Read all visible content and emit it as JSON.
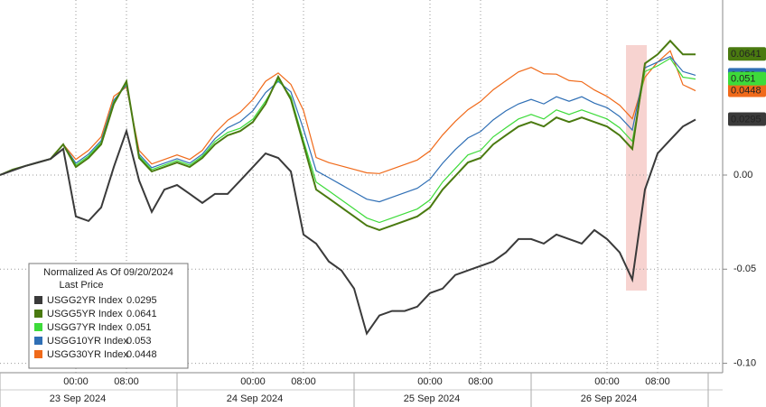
{
  "chart_data": {
    "type": "line",
    "legend_title": "Normalized As Of 09/20/2024",
    "legend_subtitle": "Last Price",
    "legend_position": "lower left",
    "grid": true,
    "categories": [
      null,
      null,
      null,
      null,
      null,
      null,
      "00:00",
      null,
      null,
      null,
      "08:00",
      null,
      null,
      null,
      null,
      null,
      null,
      null,
      null,
      null,
      "00:00",
      null,
      null,
      null,
      "08:00",
      null,
      null,
      null,
      null,
      null,
      null,
      null,
      null,
      null,
      "00:00",
      null,
      null,
      null,
      "08:00",
      null,
      null,
      null,
      null,
      null,
      null,
      null,
      null,
      null,
      "00:00",
      null,
      null,
      null,
      "08:00",
      null,
      null,
      null
    ],
    "dates": [
      "23 Sep 2024",
      "24 Sep 2024",
      "25 Sep 2024",
      "26 Sep 2024"
    ],
    "ylim": [
      -0.105,
      0.093
    ],
    "yticks": [
      {
        "value": 0,
        "label": "0.00"
      },
      {
        "value": -0.05,
        "label": "-0.05"
      },
      {
        "value": -0.1,
        "label": "-0.10"
      }
    ],
    "series": [
      {
        "name": "USGG2YR Index",
        "color": "#3a3a3a",
        "last": 0.0295,
        "values": [
          0,
          0.0024,
          0.0048,
          0.0067,
          0.0086,
          0.0139,
          -0.022,
          -0.0244,
          -0.0172,
          0.0043,
          0.0234,
          -0.0029,
          -0.0196,
          -0.0077,
          -0.0053,
          -0.01,
          -0.0148,
          -0.01,
          -0.01,
          -0.0029,
          0.0043,
          0.0115,
          0.0091,
          0.0019,
          -0.0316,
          -0.0364,
          -0.0459,
          -0.0507,
          -0.0603,
          -0.0842,
          -0.0746,
          -0.0722,
          -0.0722,
          -0.0699,
          -0.0627,
          -0.0603,
          -0.0531,
          -0.0507,
          -0.0483,
          -0.0459,
          -0.0411,
          -0.034,
          -0.034,
          -0.0364,
          -0.0316,
          -0.034,
          -0.0364,
          -0.0292,
          -0.034,
          -0.0411,
          -0.0555,
          -0.0077,
          0.0115,
          0.0187,
          0.0258,
          0.0295
        ]
      },
      {
        "name": "USGG5YR Index",
        "color": "#4a7a10",
        "last": 0.0641,
        "values": [
          0,
          0.0029,
          0.0048,
          0.0067,
          0.0086,
          0.0163,
          0.0043,
          0.0091,
          0.0163,
          0.0378,
          0.0498,
          0.0091,
          0.0019,
          0.0043,
          0.0067,
          0.0043,
          0.0091,
          0.0163,
          0.0211,
          0.0234,
          0.0282,
          0.0378,
          0.0522,
          0.0402,
          0.0163,
          -0.0077,
          -0.0124,
          -0.0172,
          -0.022,
          -0.0268,
          -0.0292,
          -0.0268,
          -0.0244,
          -0.022,
          -0.0172,
          -0.0077,
          -0.0005,
          0.0067,
          0.0091,
          0.0163,
          0.0211,
          0.0258,
          0.0282,
          0.0258,
          0.0306,
          0.0282,
          0.0306,
          0.0282,
          0.0258,
          0.0211,
          0.0139,
          0.0593,
          0.0641,
          0.0713,
          0.0641,
          0.0641
        ]
      },
      {
        "name": "USGG7YR Index",
        "color": "#3ddb3a",
        "last": 0.051,
        "values": [
          0,
          0.0029,
          0.0048,
          0.0067,
          0.0086,
          0.0163,
          0.0053,
          0.0101,
          0.0173,
          0.0388,
          0.0488,
          0.0101,
          0.0029,
          0.0053,
          0.0077,
          0.0053,
          0.0101,
          0.0178,
          0.0226,
          0.0249,
          0.0297,
          0.0393,
          0.0507,
          0.0417,
          0.0183,
          -0.0037,
          -0.0084,
          -0.0132,
          -0.018,
          -0.0228,
          -0.0252,
          -0.0228,
          -0.0204,
          -0.018,
          -0.0132,
          -0.0037,
          0.0035,
          0.0107,
          0.0131,
          0.0203,
          0.0251,
          0.0298,
          0.0322,
          0.0298,
          0.0346,
          0.0322,
          0.0346,
          0.0322,
          0.0298,
          0.0251,
          0.0179,
          0.055,
          0.058,
          0.062,
          0.052,
          0.051
        ]
      },
      {
        "name": "USGG10YR Index",
        "color": "#2f6fb5",
        "last": 0.053,
        "values": [
          0,
          0.0029,
          0.0048,
          0.0067,
          0.0086,
          0.0163,
          0.0063,
          0.0111,
          0.0183,
          0.0398,
          0.0478,
          0.0111,
          0.0039,
          0.0063,
          0.0087,
          0.0063,
          0.0111,
          0.0193,
          0.0251,
          0.0284,
          0.0342,
          0.0438,
          0.0497,
          0.0442,
          0.0243,
          0.0023,
          -0.0014,
          -0.0052,
          -0.009,
          -0.0128,
          -0.0142,
          -0.0118,
          -0.0094,
          -0.007,
          -0.0022,
          0.0063,
          0.0135,
          0.0197,
          0.0231,
          0.0293,
          0.0341,
          0.0378,
          0.0402,
          0.0378,
          0.0416,
          0.0392,
          0.0416,
          0.0382,
          0.0358,
          0.0311,
          0.0239,
          0.057,
          0.06,
          0.063,
          0.055,
          0.053
        ]
      },
      {
        "name": "USGG30YR Index",
        "color": "#f06a1a",
        "last": 0.0448,
        "values": [
          0,
          0.0029,
          0.0048,
          0.0067,
          0.0086,
          0.0163,
          0.0083,
          0.0131,
          0.0203,
          0.0418,
          0.0468,
          0.0131,
          0.0059,
          0.0083,
          0.0107,
          0.0083,
          0.0131,
          0.0223,
          0.0291,
          0.0334,
          0.0402,
          0.0498,
          0.0542,
          0.0482,
          0.0343,
          0.0093,
          0.0066,
          0.0048,
          0.003,
          0.0012,
          0.0008,
          0.0032,
          0.0056,
          0.008,
          0.0128,
          0.0213,
          0.0285,
          0.0347,
          0.0391,
          0.0453,
          0.0501,
          0.0548,
          0.0572,
          0.0538,
          0.0536,
          0.0502,
          0.0496,
          0.0452,
          0.0418,
          0.0371,
          0.0299,
          0.052,
          0.06,
          0.066,
          0.048,
          0.0448
        ]
      }
    ]
  }
}
